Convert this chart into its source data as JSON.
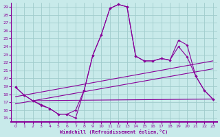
{
  "xlabel": "Windchill (Refroidissement éolien,°C)",
  "bg_color": "#c8eaea",
  "grid_color": "#a0cccc",
  "line_color": "#880099",
  "spine_color": "#880099",
  "x_ticks": [
    0,
    1,
    2,
    3,
    4,
    5,
    6,
    7,
    8,
    9,
    10,
    11,
    12,
    13,
    14,
    15,
    16,
    17,
    18,
    19,
    20,
    21,
    22,
    23
  ],
  "y_ticks": [
    15,
    16,
    17,
    18,
    19,
    20,
    21,
    22,
    23,
    24,
    25,
    26,
    27,
    28,
    29
  ],
  "xlim": [
    -0.5,
    23.5
  ],
  "ylim": [
    14.5,
    29.5
  ],
  "curve1_x": [
    0,
    1,
    2,
    3,
    4,
    5,
    6,
    7,
    8,
    9,
    10,
    11,
    12,
    13,
    14,
    15,
    16,
    17,
    18,
    19,
    20,
    21,
    22,
    23
  ],
  "curve1_y": [
    18.9,
    17.9,
    17.2,
    16.7,
    16.2,
    15.5,
    15.5,
    15.0,
    18.5,
    22.9,
    25.5,
    28.8,
    29.3,
    29.0,
    22.8,
    22.2,
    22.2,
    22.5,
    22.3,
    24.8,
    24.2,
    20.3,
    18.5,
    17.4
  ],
  "curve2_x": [
    0,
    1,
    2,
    3,
    4,
    5,
    6,
    7,
    8,
    9,
    10,
    11,
    12,
    13,
    14,
    15,
    16,
    17,
    18,
    19,
    20,
    21,
    22,
    23
  ],
  "curve2_y": [
    18.9,
    17.9,
    17.2,
    16.6,
    16.2,
    15.5,
    15.5,
    16.0,
    18.5,
    22.9,
    25.5,
    28.8,
    29.3,
    29.0,
    22.8,
    22.2,
    22.2,
    22.5,
    22.3,
    24.0,
    22.7,
    20.3,
    18.5,
    17.4
  ],
  "line1_x": [
    0,
    23
  ],
  "line1_y": [
    17.7,
    22.2
  ],
  "line2_x": [
    0,
    23
  ],
  "line2_y": [
    16.8,
    21.2
  ],
  "flat_line_x": [
    2,
    23
  ],
  "flat_line_y": [
    17.2,
    17.4
  ]
}
